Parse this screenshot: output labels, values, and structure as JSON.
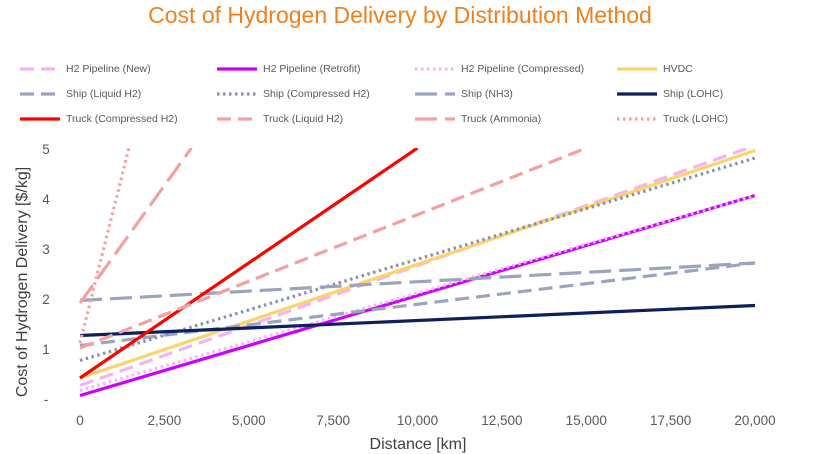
{
  "chart_data": {
    "type": "line",
    "title": "Cost of Hydrogen Delivery by Distribution Method",
    "xlabel": "Distance [km]",
    "ylabel": "Cost of Hydrogen Delivery [$/kg]",
    "xlim": [
      0,
      20000
    ],
    "ylim": [
      0,
      5
    ],
    "x_ticks": [
      0,
      2500,
      5000,
      7500,
      10000,
      12500,
      15000,
      17500,
      20000
    ],
    "x_tick_labels": [
      "0",
      "2,500",
      "5,000",
      "7,500",
      "10,000",
      "12,500",
      "15,000",
      "17,500",
      "20,000"
    ],
    "y_ticks": [
      0,
      1,
      2,
      3,
      4,
      5
    ],
    "y_tick_labels": [
      "-",
      "1",
      "2",
      "3",
      "4",
      "5"
    ],
    "grid": false,
    "legend_position": "top",
    "series": [
      {
        "name": "H2 Pipeline (New)",
        "color": "#f4b3f4",
        "dash": "dash",
        "x": [
          0,
          20000
        ],
        "y": [
          0.25,
          5.05
        ]
      },
      {
        "name": "H2 Pipeline (Retrofit)",
        "color": "#cc00ff",
        "dash": "solid",
        "x": [
          0,
          20000
        ],
        "y": [
          0.05,
          4.05
        ]
      },
      {
        "name": "H2 Pipeline (Compressed)",
        "color": "#f4b3f4",
        "dash": "dot",
        "x": [
          0,
          20000
        ],
        "y": [
          0.15,
          4.05
        ]
      },
      {
        "name": "HVDC",
        "color": "#fad46b",
        "dash": "solid",
        "x": [
          0,
          20000
        ],
        "y": [
          0.4,
          4.95
        ]
      },
      {
        "name": "Ship (Liquid H2)",
        "color": "#9aa5bd",
        "dash": "dash",
        "x": [
          0,
          20000
        ],
        "y": [
          1.05,
          2.7
        ]
      },
      {
        "name": "Ship (Compressed H2)",
        "color": "#8691ab",
        "dash": "dot",
        "x": [
          0,
          20000
        ],
        "y": [
          0.75,
          4.8
        ]
      },
      {
        "name": "Ship (NH3)",
        "color": "#9aa5bd",
        "dash": "longdash",
        "x": [
          0,
          20000
        ],
        "y": [
          1.95,
          2.7
        ]
      },
      {
        "name": "Ship (LOHC)",
        "color": "#0d1f5c",
        "dash": "solid",
        "x": [
          0,
          20000
        ],
        "y": [
          1.25,
          1.85
        ]
      },
      {
        "name": "Truck (Compressed H2)",
        "color": "#ff0000",
        "dash": "solid",
        "x": [
          0,
          10000
        ],
        "y": [
          0.4,
          5.0
        ]
      },
      {
        "name": "Truck (Liquid H2)",
        "color": "#f4a0a0",
        "dash": "dash",
        "x": [
          0,
          15000
        ],
        "y": [
          1.0,
          5.0
        ]
      },
      {
        "name": "Truck (Ammonia)",
        "color": "#f4a0a0",
        "dash": "longdash",
        "x": [
          0,
          3300
        ],
        "y": [
          1.9,
          5.0
        ]
      },
      {
        "name": "Truck (LOHC)",
        "color": "#f4a0a0",
        "dash": "dot",
        "x": [
          0,
          1450
        ],
        "y": [
          1.1,
          5.0
        ]
      }
    ]
  }
}
